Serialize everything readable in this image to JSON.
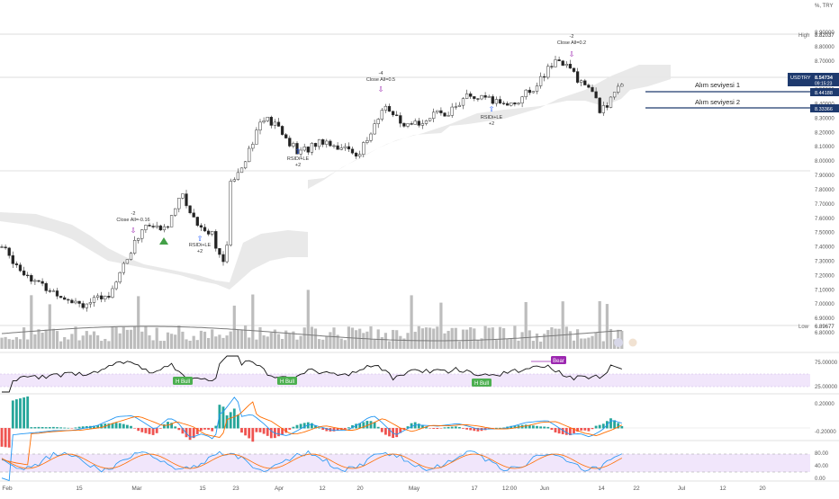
{
  "price_axis": {
    "unit_label": "%, TRY",
    "ticks": [
      "8.90000",
      "8.80000",
      "8.70000",
      "8.60000",
      "8.50000",
      "8.40000",
      "8.30000",
      "8.20000",
      "8.10000",
      "8.00000",
      "7.90000",
      "7.80000",
      "7.70000",
      "7.60000",
      "7.50000",
      "7.40000",
      "7.30000",
      "7.20000",
      "7.10000",
      "7.00000",
      "6.90000",
      "6.80000"
    ]
  },
  "badges": {
    "high_label": "High",
    "high_value": "8.82037",
    "low_label": "Low",
    "low_value": "6.89677",
    "symbol": "USDTRY",
    "last_price": "8.54734",
    "countdown": "09:15:23",
    "level1_value": "8.44188",
    "level2_value": "8.33366"
  },
  "support_levels": [
    {
      "label": "Alım seviyesi 1",
      "price": 8.44188
    },
    {
      "label": "Alım seviyesi 2",
      "price": 8.33366
    }
  ],
  "annotations": [
    {
      "id": "close-all-1",
      "lines": [
        "-2",
        "Close All=-0.16"
      ],
      "x_date": "2021-03-01"
    },
    {
      "id": "close-all-2",
      "lines": [
        "-4",
        "Close All=0.5"
      ],
      "x_date": "2021-04-26"
    },
    {
      "id": "close-all-3",
      "lines": [
        "-2",
        "Close All=0.2"
      ],
      "x_date": "2021-06-03"
    },
    {
      "id": "rsi-le-1",
      "lines": [
        "RSIDi+LE",
        "+2"
      ],
      "x_date": "2021-03-09"
    },
    {
      "id": "rsi-le-2",
      "lines": [
        "RSIDi+LE",
        "+2"
      ],
      "x_date": "2021-04-05"
    },
    {
      "id": "rsi-le-3",
      "lines": [
        "RSIDi+LE",
        "+2"
      ],
      "x_date": "2021-05-25"
    }
  ],
  "rsi_panel": {
    "ticks": [
      "75.00000",
      "25.00000"
    ],
    "bull_label": "H Bull",
    "bear_label": "Bear"
  },
  "macd_panel": {
    "ticks": [
      "0.20000",
      "-0.20000"
    ]
  },
  "stoch_panel": {
    "ticks": [
      "80.00",
      "40.00",
      "0.00"
    ]
  },
  "time_axis": {
    "labels": [
      "Feb",
      "15",
      "Mar",
      "15",
      "23",
      "Apr",
      "12",
      "20",
      "May",
      "17",
      "12:00",
      "Jun",
      "14",
      "22",
      "Jul",
      "12",
      "20"
    ]
  },
  "chart_data": {
    "type": "candlestick",
    "symbol": "USDTRY",
    "y_range": [
      6.75,
      8.95
    ],
    "x_range": [
      "2021-02-01",
      "2021-07-26"
    ],
    "ohlc_close": [
      [
        "2021-02-01",
        7.4
      ],
      [
        "2021-02-05",
        7.25
      ],
      [
        "2021-02-10",
        7.12
      ],
      [
        "2021-02-15",
        7.05
      ],
      [
        "2021-02-19",
        7.0
      ],
      [
        "2021-02-24",
        7.05
      ],
      [
        "2021-03-01",
        7.35
      ],
      [
        "2021-03-04",
        7.55
      ],
      [
        "2021-03-09",
        7.52
      ],
      [
        "2021-03-12",
        7.78
      ],
      [
        "2021-03-16",
        7.55
      ],
      [
        "2021-03-19",
        7.5
      ],
      [
        "2021-03-22",
        7.22
      ],
      [
        "2021-03-23",
        7.85
      ],
      [
        "2021-03-26",
        8.0
      ],
      [
        "2021-03-30",
        8.3
      ],
      [
        "2021-04-02",
        8.25
      ],
      [
        "2021-04-07",
        8.05
      ],
      [
        "2021-04-12",
        8.15
      ],
      [
        "2021-04-16",
        8.1
      ],
      [
        "2021-04-20",
        8.05
      ],
      [
        "2021-04-23",
        8.2
      ],
      [
        "2021-04-26",
        8.4
      ],
      [
        "2021-04-30",
        8.22
      ],
      [
        "2021-05-05",
        8.3
      ],
      [
        "2021-05-10",
        8.35
      ],
      [
        "2021-05-14",
        8.45
      ],
      [
        "2021-05-19",
        8.42
      ],
      [
        "2021-05-24",
        8.4
      ],
      [
        "2021-05-28",
        8.5
      ],
      [
        "2021-06-01",
        8.65
      ],
      [
        "2021-06-03",
        8.72
      ],
      [
        "2021-06-07",
        8.58
      ],
      [
        "2021-06-10",
        8.5
      ],
      [
        "2021-06-12",
        8.35
      ],
      [
        "2021-06-15",
        8.45
      ],
      [
        "2021-06-17",
        8.55
      ]
    ],
    "volume_scale": "relative"
  },
  "colors": {
    "up": "#26a69a",
    "down": "#222222",
    "cloud": "#e6e6e6",
    "rsi_band": "#f1e6fb",
    "level_line": "#1e3a6e",
    "exit_marker": "#9c27b0",
    "entry_marker": "#2962ff"
  }
}
